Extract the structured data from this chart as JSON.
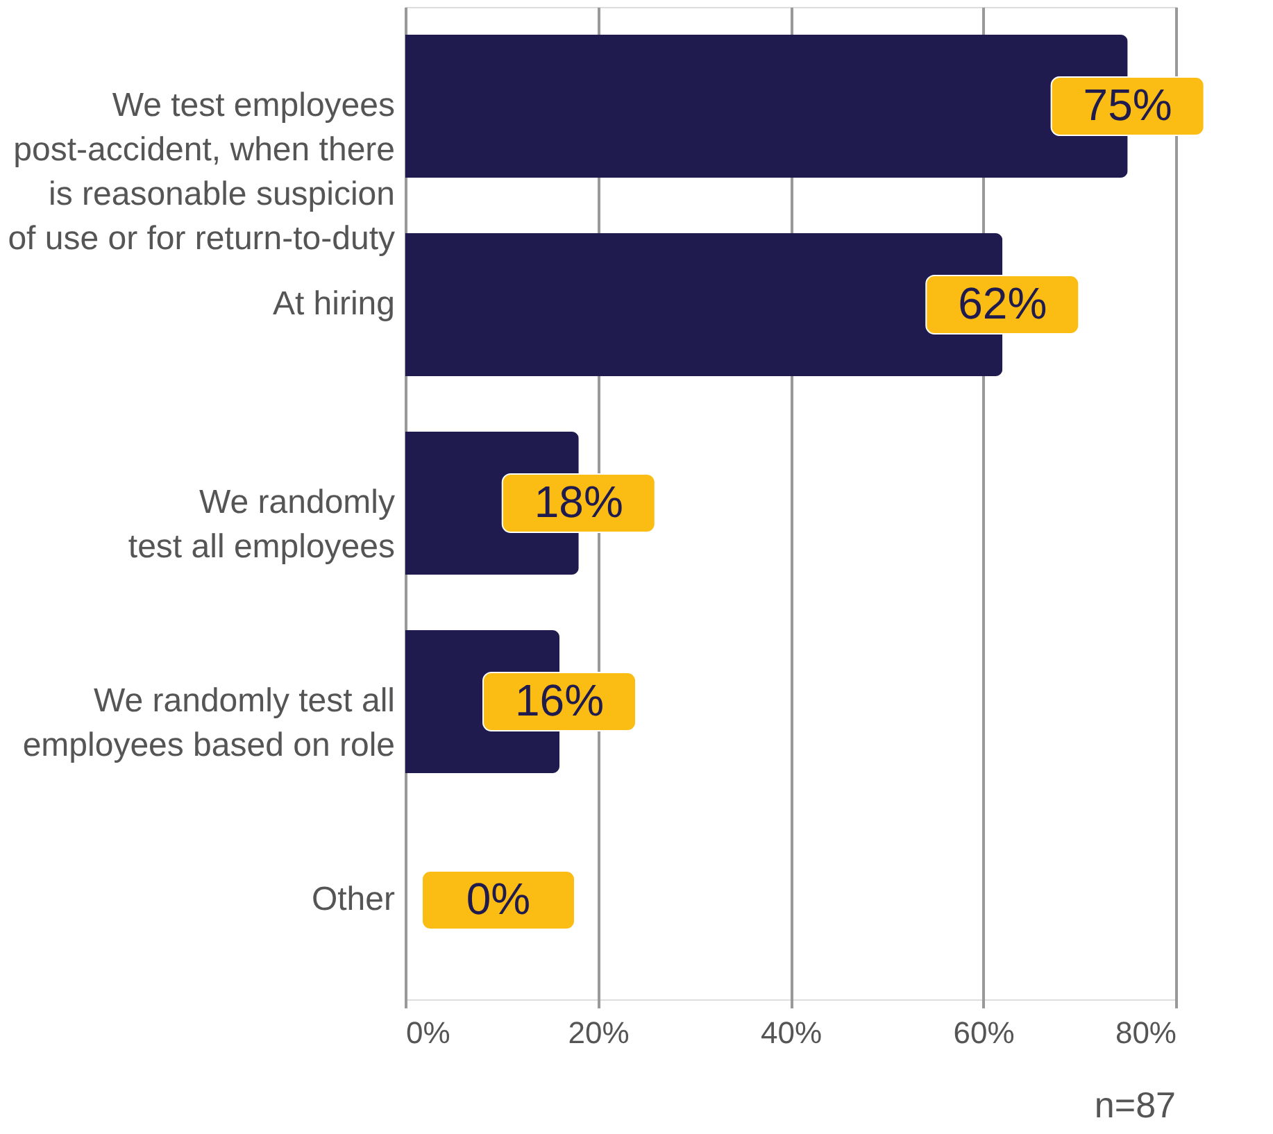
{
  "chart_data": {
    "type": "bar",
    "orientation": "horizontal",
    "categories": [
      "We test employees\npost-accident, when there\nis reasonable suspicion\nof use or for return-to-duty",
      "At hiring",
      "We randomly\ntest all employees",
      "We randomly test all\nemployees based on role",
      "Other"
    ],
    "values": [
      75,
      62,
      18,
      16,
      0
    ],
    "value_labels": [
      "75%",
      "62%",
      "18%",
      "16%",
      "0%"
    ],
    "color": "#1f1b4e",
    "xlim": [
      0,
      80
    ],
    "xticks": [
      {
        "value": 0,
        "label": "0%"
      },
      {
        "value": 20,
        "label": "20%"
      },
      {
        "value": 40,
        "label": "40%"
      },
      {
        "value": 60,
        "label": "60%"
      },
      {
        "value": 80,
        "label": "80%"
      }
    ],
    "grid": "x",
    "annotations": [
      "n=87"
    ]
  }
}
